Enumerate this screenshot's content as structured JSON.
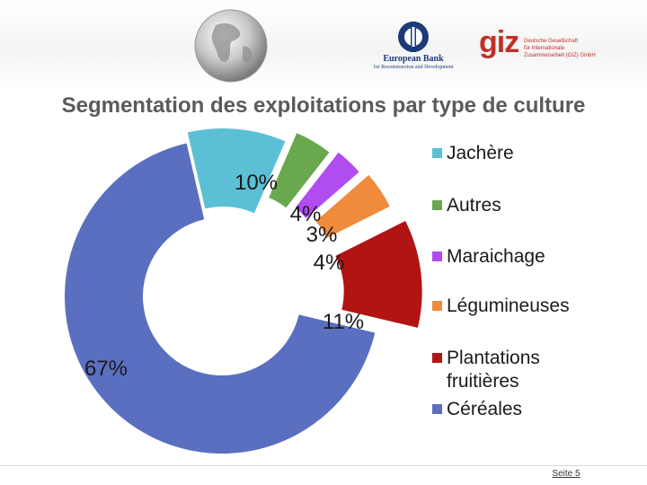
{
  "slide": {
    "title": "Segmentation des exploitations par type de culture",
    "page_label": "Seite 5"
  },
  "logos": {
    "ebrd_name": "European Bank",
    "ebrd_sub": "for Reconstruction and Development",
    "giz_mark": "giz",
    "giz_line1": "Deutsche Gesellschaft",
    "giz_line2": "für Internationale",
    "giz_line3": "Zusammenarbeit (GIZ) GmbH"
  },
  "chart_data": {
    "type": "pie",
    "style": "exploded donut",
    "series": [
      {
        "name": "Jachère",
        "value": 10,
        "label": "10%",
        "color": "#5bc0d6"
      },
      {
        "name": "Autres",
        "value": 4,
        "label": "4%",
        "color": "#6aa84f"
      },
      {
        "name": "Maraichage",
        "value": 3,
        "label": "3%",
        "color": "#b04cf0"
      },
      {
        "name": "Légumineuses",
        "value": 4,
        "label": "4%",
        "color": "#ef8b3a"
      },
      {
        "name": "Plantations fruitières",
        "value": 11,
        "label": "11%",
        "color": "#b21414"
      },
      {
        "name": "Céréales",
        "value": 67,
        "label": "67%",
        "color": "#5b6fc0"
      }
    ],
    "legend": {
      "position": "right",
      "entries": [
        {
          "lines": [
            "Jachère"
          ],
          "color": "#5bc0d6"
        },
        {
          "lines": [
            "Autres"
          ],
          "color": "#6aa84f"
        },
        {
          "lines": [
            "Maraichage"
          ],
          "color": "#b04cf0"
        },
        {
          "lines": [
            "Légumineuses"
          ],
          "color": "#ef8b3a"
        },
        {
          "lines": [
            "Plantations",
            "fruitières"
          ],
          "color": "#b21414"
        },
        {
          "lines": [
            "Céréales"
          ],
          "color": "#5b6fc0"
        }
      ]
    }
  }
}
